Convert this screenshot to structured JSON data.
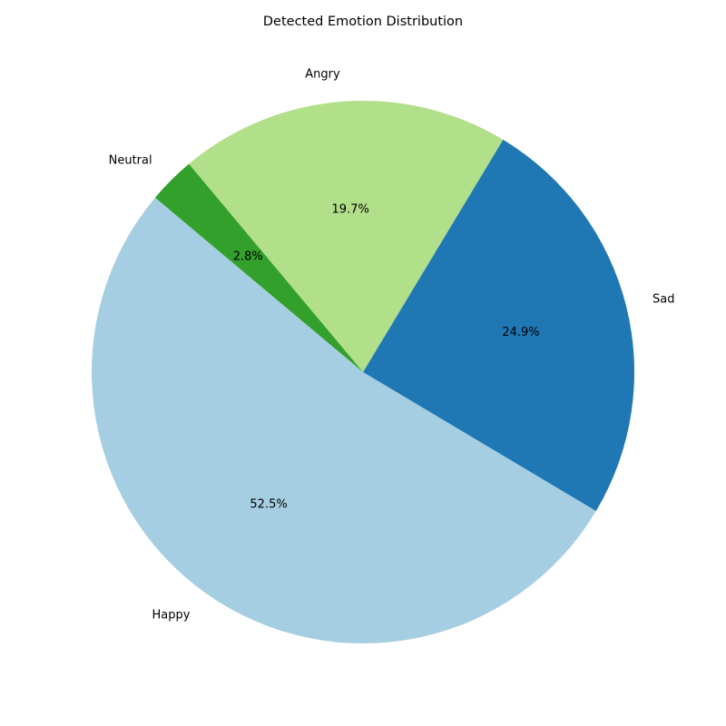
{
  "chart_data": {
    "type": "pie",
    "title": "Detected Emotion Distribution",
    "start_angle_deg": 140,
    "direction": "counterclockwise",
    "slices": [
      {
        "label": "Happy",
        "value": 52.5,
        "pct_text": "52.5%",
        "color": "#a6cee3"
      },
      {
        "label": "Sad",
        "value": 24.9,
        "pct_text": "24.9%",
        "color": "#1f78b4"
      },
      {
        "label": "Angry",
        "value": 19.7,
        "pct_text": "19.7%",
        "color": "#b2df8a"
      },
      {
        "label": "Neutral",
        "value": 2.8,
        "pct_text": "2.8%",
        "color": "#33a02c"
      }
    ]
  }
}
